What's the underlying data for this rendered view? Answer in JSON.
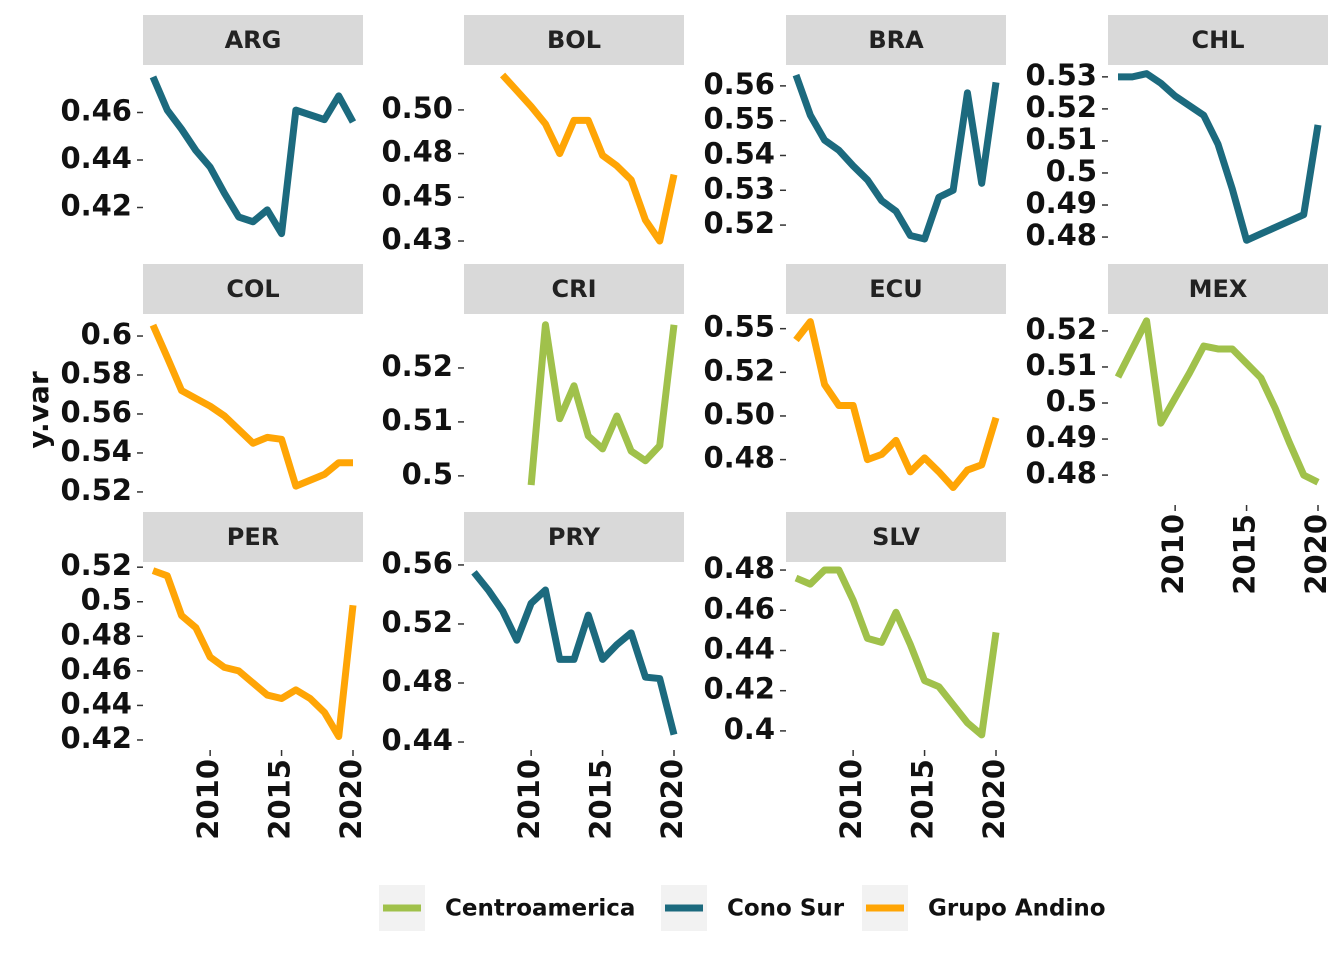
{
  "y_label": "y.var",
  "legend": [
    {
      "name": "Centroamerica",
      "color": "#a0c14b"
    },
    {
      "name": "Cono Sur",
      "color": "#1c6a7e"
    },
    {
      "name": "Grupo Andino",
      "color": "#ffa505"
    }
  ],
  "chart_data": [
    {
      "type": "line",
      "title": "ARG",
      "color": "#1c6a7e",
      "x": [
        2006,
        2007,
        2008,
        2009,
        2010,
        2011,
        2012,
        2013,
        2014,
        2015,
        2016,
        2017,
        2018,
        2019,
        2020
      ],
      "values": [
        0.475,
        0.461,
        0.453,
        0.444,
        0.437,
        0.426,
        0.416,
        0.414,
        0.419,
        0.409,
        0.461,
        0.459,
        0.457,
        0.467,
        0.456
      ],
      "xlim": [
        2005.3,
        2020.7
      ],
      "ylim": [
        0.4,
        0.48
      ],
      "yticks": [
        0.42,
        0.44,
        0.46
      ]
    },
    {
      "type": "line",
      "title": "BOL",
      "color": "#ffa505",
      "x": [
        2008,
        2009,
        2010,
        2011,
        2012,
        2013,
        2014,
        2015,
        2016,
        2017,
        2018,
        2019,
        2020
      ],
      "values": [
        0.52,
        0.511,
        0.502,
        0.492,
        0.475,
        0.494,
        0.494,
        0.474,
        0.468,
        0.46,
        0.437,
        0.425,
        0.463
      ],
      "xlim": [
        2005.3,
        2020.7
      ],
      "ylim": [
        0.417,
        0.5257
      ],
      "yticks": [
        {
          "value": 0.425,
          "label": "0.43"
        },
        {
          "value": 0.45,
          "label": "0.45"
        },
        {
          "value": 0.475,
          "label": "0.48"
        },
        {
          "value": 0.5,
          "label": "0.50"
        }
      ]
    },
    {
      "type": "line",
      "title": "BRA",
      "color": "#1c6a7e",
      "x": [
        2006,
        2007,
        2008,
        2009,
        2010,
        2011,
        2012,
        2013,
        2014,
        2015,
        2016,
        2017,
        2018,
        2019,
        2020
      ],
      "values": [
        0.5631,
        0.5516,
        0.5444,
        0.5415,
        0.537,
        0.533,
        0.527,
        0.524,
        0.517,
        0.516,
        0.528,
        0.53,
        0.558,
        0.532,
        0.561
      ],
      "xlim": [
        2005.3,
        2020.7
      ],
      "ylim": [
        0.5114,
        0.566
      ],
      "yticks": [
        0.52,
        0.53,
        0.54,
        0.55,
        0.56
      ]
    },
    {
      "type": "line",
      "title": "CHL",
      "color": "#1c6a7e",
      "x": [
        2006,
        2007,
        2008,
        2009,
        2010,
        2011,
        2012,
        2013,
        2014,
        2015,
        2016,
        2017,
        2018,
        2019,
        2020
      ],
      "values": [
        0.53,
        0.53,
        0.531,
        0.528,
        0.524,
        0.521,
        0.518,
        0.509,
        0.495,
        0.479,
        0.481,
        0.483,
        0.485,
        0.487,
        0.515
      ],
      "xlim": [
        2005.3,
        2020.7
      ],
      "ylim": [
        0.4744,
        0.5337
      ],
      "yticks": [
        0.48,
        0.49,
        0.5,
        0.51,
        0.52,
        0.53
      ]
    },
    {
      "type": "line",
      "title": "COL",
      "color": "#ffa505",
      "x": [
        2006,
        2007,
        2008,
        2009,
        2010,
        2011,
        2012,
        2013,
        2014,
        2015,
        2016,
        2017,
        2018,
        2019,
        2020
      ],
      "values": [
        0.6056,
        0.589,
        0.572,
        0.568,
        0.564,
        0.559,
        0.552,
        0.545,
        0.548,
        0.547,
        0.523,
        0.526,
        0.529,
        0.535,
        0.535
      ],
      "xlim": [
        2005.3,
        2020.7
      ],
      "ylim": [
        0.5133,
        0.6113
      ],
      "yticks": [
        0.52,
        0.54,
        0.56,
        0.58,
        0.6
      ]
    },
    {
      "type": "line",
      "title": "CRI",
      "color": "#a0c14b",
      "x": [
        2010,
        2011,
        2012,
        2013,
        2014,
        2015,
        2016,
        2017,
        2018,
        2019,
        2020
      ],
      "values": [
        0.4983,
        0.528,
        0.5106,
        0.5167,
        0.5074,
        0.505,
        0.5111,
        0.5046,
        0.5028,
        0.5056,
        0.528
      ],
      "xlim": [
        2005.3,
        2020.7
      ],
      "ylim": [
        0.4946,
        0.53
      ],
      "yticks": [
        0.5,
        0.51,
        0.52
      ]
    },
    {
      "type": "line",
      "title": "ECU",
      "color": "#ffa505",
      "x": [
        2006,
        2007,
        2008,
        2009,
        2010,
        2011,
        2012,
        2013,
        2014,
        2015,
        2016,
        2017,
        2018,
        2019,
        2020
      ],
      "values": [
        0.5435,
        0.554,
        0.518,
        0.506,
        0.506,
        0.475,
        0.478,
        0.486,
        0.468,
        0.476,
        0.468,
        0.459,
        0.469,
        0.472,
        0.499
      ],
      "xlim": [
        2005.3,
        2020.7
      ],
      "ylim": [
        0.449,
        0.5584
      ],
      "yticks": [
        {
          "value": 0.475,
          "label": "0.48"
        },
        {
          "value": 0.5,
          "label": "0.50"
        },
        {
          "value": 0.525,
          "label": "0.52"
        },
        {
          "value": 0.55,
          "label": "0.55"
        }
      ]
    },
    {
      "type": "line",
      "title": "MEX",
      "color": "#a0c14b",
      "x": [
        2006,
        2007,
        2008,
        2009,
        2010,
        2011,
        2012,
        2013,
        2014,
        2015,
        2016,
        2017,
        2018,
        2019,
        2020
      ],
      "values": [
        0.5072,
        0.515,
        0.5228,
        0.4944,
        0.5014,
        0.5083,
        0.5158,
        0.515,
        0.515,
        0.511,
        0.507,
        0.4986,
        0.489,
        0.48,
        0.478
      ],
      "xlim": [
        2005.3,
        2020.7
      ],
      "ylim": [
        0.4717,
        0.5247
      ],
      "yticks": [
        0.48,
        0.49,
        0.5,
        0.51,
        0.52
      ],
      "xticks": [
        2010,
        2015,
        2020
      ]
    },
    {
      "type": "line",
      "title": "PER",
      "color": "#ffa505",
      "x": [
        2006,
        2007,
        2008,
        2009,
        2010,
        2011,
        2012,
        2013,
        2014,
        2015,
        2016,
        2017,
        2018,
        2019,
        2020
      ],
      "values": [
        0.518,
        0.515,
        0.492,
        0.485,
        0.468,
        0.462,
        0.46,
        0.453,
        0.446,
        0.444,
        0.449,
        0.444,
        0.436,
        0.422,
        0.498
      ],
      "xlim": [
        2005.3,
        2020.7
      ],
      "ylim": [
        0.4142,
        0.523
      ],
      "yticks": [
        0.42,
        0.44,
        0.46,
        0.48,
        0.5,
        0.52
      ],
      "xticks": [
        2010,
        2015,
        2020
      ]
    },
    {
      "type": "line",
      "title": "PRY",
      "color": "#1c6a7e",
      "x": [
        2006,
        2007,
        2008,
        2009,
        2010,
        2011,
        2012,
        2013,
        2014,
        2015,
        2016,
        2017,
        2018,
        2019,
        2020
      ],
      "values": [
        0.555,
        0.543,
        0.529,
        0.509,
        0.534,
        0.543,
        0.496,
        0.496,
        0.526,
        0.496,
        0.506,
        0.514,
        0.484,
        0.483,
        0.445
      ],
      "xlim": [
        2005.3,
        2020.7
      ],
      "ylim": [
        0.4346,
        0.562
      ],
      "yticks": [
        0.44,
        0.48,
        0.52,
        0.56
      ],
      "xticks": [
        2010,
        2015,
        2020
      ]
    },
    {
      "type": "line",
      "title": "SLV",
      "color": "#a0c14b",
      "x": [
        2006,
        2007,
        2008,
        2009,
        2010,
        2011,
        2012,
        2013,
        2014,
        2015,
        2016,
        2017,
        2018,
        2019,
        2020
      ],
      "values": [
        0.476,
        0.473,
        0.48,
        0.48,
        0.465,
        0.446,
        0.444,
        0.459,
        0.443,
        0.425,
        0.422,
        0.413,
        0.404,
        0.398,
        0.449
      ],
      "xlim": [
        2005.3,
        2020.7
      ],
      "ylim": [
        0.3905,
        0.484
      ],
      "yticks": [
        0.4,
        0.42,
        0.44,
        0.46,
        0.48
      ],
      "xticks": [
        2010,
        2015,
        2020
      ]
    }
  ]
}
